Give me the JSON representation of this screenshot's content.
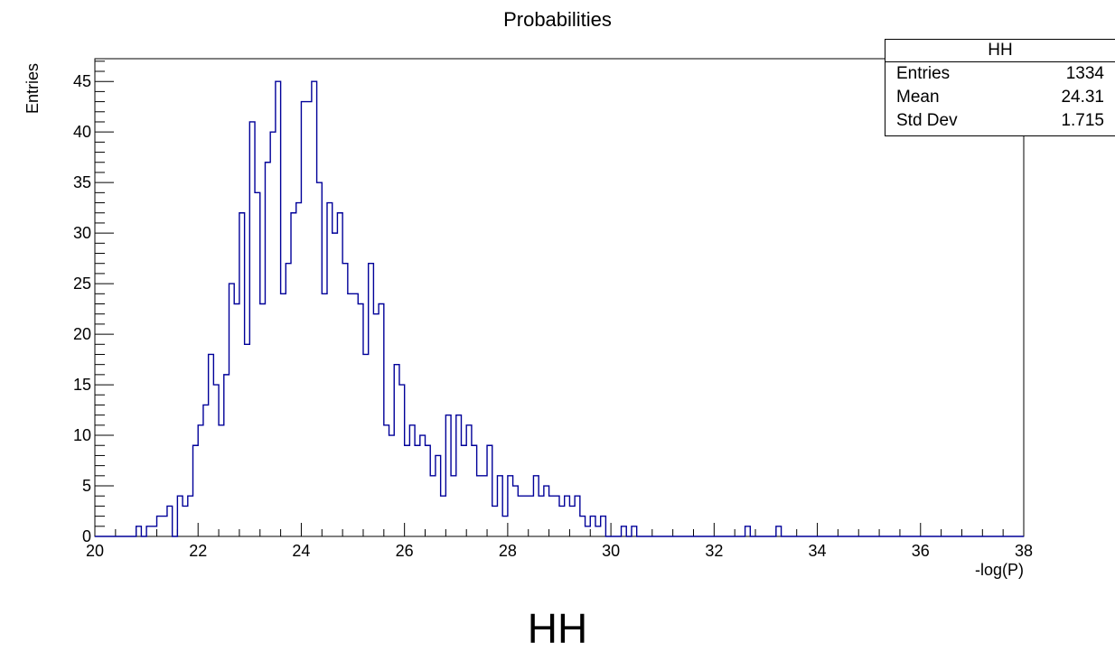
{
  "chart_data": {
    "type": "bar",
    "title": "Probabilities",
    "xlabel": "-log(P)",
    "ylabel": "Entries",
    "xlim": [
      20,
      38
    ],
    "ylim": [
      0,
      47.25
    ],
    "bin_width": 0.1,
    "x_ticks": [
      20,
      22,
      24,
      26,
      28,
      30,
      32,
      34,
      36,
      38
    ],
    "y_ticks": [
      0,
      5,
      10,
      15,
      20,
      25,
      30,
      35,
      40,
      45
    ],
    "line_color": "#000099",
    "bins": [
      {
        "x": 20.8,
        "y": 1
      },
      {
        "x": 20.9,
        "y": 0
      },
      {
        "x": 21.0,
        "y": 1
      },
      {
        "x": 21.1,
        "y": 1
      },
      {
        "x": 21.2,
        "y": 2
      },
      {
        "x": 21.3,
        "y": 2
      },
      {
        "x": 21.4,
        "y": 3
      },
      {
        "x": 21.5,
        "y": 0
      },
      {
        "x": 21.6,
        "y": 4
      },
      {
        "x": 21.7,
        "y": 3
      },
      {
        "x": 21.8,
        "y": 4
      },
      {
        "x": 21.9,
        "y": 9
      },
      {
        "x": 22.0,
        "y": 11
      },
      {
        "x": 22.1,
        "y": 13
      },
      {
        "x": 22.2,
        "y": 18
      },
      {
        "x": 22.3,
        "y": 15
      },
      {
        "x": 22.4,
        "y": 11
      },
      {
        "x": 22.5,
        "y": 16
      },
      {
        "x": 22.6,
        "y": 25
      },
      {
        "x": 22.7,
        "y": 23
      },
      {
        "x": 22.8,
        "y": 32
      },
      {
        "x": 22.9,
        "y": 19
      },
      {
        "x": 23.0,
        "y": 41
      },
      {
        "x": 23.1,
        "y": 34
      },
      {
        "x": 23.2,
        "y": 23
      },
      {
        "x": 23.3,
        "y": 37
      },
      {
        "x": 23.4,
        "y": 40
      },
      {
        "x": 23.5,
        "y": 45
      },
      {
        "x": 23.6,
        "y": 24
      },
      {
        "x": 23.7,
        "y": 27
      },
      {
        "x": 23.8,
        "y": 32
      },
      {
        "x": 23.9,
        "y": 33
      },
      {
        "x": 24.0,
        "y": 43
      },
      {
        "x": 24.1,
        "y": 43
      },
      {
        "x": 24.2,
        "y": 45
      },
      {
        "x": 24.3,
        "y": 35
      },
      {
        "x": 24.4,
        "y": 24
      },
      {
        "x": 24.5,
        "y": 33
      },
      {
        "x": 24.6,
        "y": 30
      },
      {
        "x": 24.7,
        "y": 32
      },
      {
        "x": 24.8,
        "y": 27
      },
      {
        "x": 24.9,
        "y": 24
      },
      {
        "x": 25.0,
        "y": 24
      },
      {
        "x": 25.1,
        "y": 23
      },
      {
        "x": 25.2,
        "y": 18
      },
      {
        "x": 25.3,
        "y": 27
      },
      {
        "x": 25.4,
        "y": 22
      },
      {
        "x": 25.5,
        "y": 23
      },
      {
        "x": 25.6,
        "y": 11
      },
      {
        "x": 25.7,
        "y": 10
      },
      {
        "x": 25.8,
        "y": 17
      },
      {
        "x": 25.9,
        "y": 15
      },
      {
        "x": 26.0,
        "y": 9
      },
      {
        "x": 26.1,
        "y": 11
      },
      {
        "x": 26.2,
        "y": 9
      },
      {
        "x": 26.3,
        "y": 10
      },
      {
        "x": 26.4,
        "y": 9
      },
      {
        "x": 26.5,
        "y": 6
      },
      {
        "x": 26.6,
        "y": 8
      },
      {
        "x": 26.7,
        "y": 4
      },
      {
        "x": 26.8,
        "y": 12
      },
      {
        "x": 26.9,
        "y": 6
      },
      {
        "x": 27.0,
        "y": 12
      },
      {
        "x": 27.1,
        "y": 9
      },
      {
        "x": 27.2,
        "y": 11
      },
      {
        "x": 27.3,
        "y": 9
      },
      {
        "x": 27.4,
        "y": 6
      },
      {
        "x": 27.5,
        "y": 6
      },
      {
        "x": 27.6,
        "y": 9
      },
      {
        "x": 27.7,
        "y": 3
      },
      {
        "x": 27.8,
        "y": 6
      },
      {
        "x": 27.9,
        "y": 2
      },
      {
        "x": 28.0,
        "y": 6
      },
      {
        "x": 28.1,
        "y": 5
      },
      {
        "x": 28.2,
        "y": 4
      },
      {
        "x": 28.3,
        "y": 4
      },
      {
        "x": 28.4,
        "y": 4
      },
      {
        "x": 28.5,
        "y": 6
      },
      {
        "x": 28.6,
        "y": 4
      },
      {
        "x": 28.7,
        "y": 5
      },
      {
        "x": 28.8,
        "y": 4
      },
      {
        "x": 28.9,
        "y": 4
      },
      {
        "x": 29.0,
        "y": 3
      },
      {
        "x": 29.1,
        "y": 4
      },
      {
        "x": 29.2,
        "y": 3
      },
      {
        "x": 29.3,
        "y": 4
      },
      {
        "x": 29.4,
        "y": 2
      },
      {
        "x": 29.5,
        "y": 1
      },
      {
        "x": 29.6,
        "y": 2
      },
      {
        "x": 29.7,
        "y": 1
      },
      {
        "x": 29.8,
        "y": 2
      },
      {
        "x": 29.9,
        "y": 0
      },
      {
        "x": 30.0,
        "y": 0
      },
      {
        "x": 30.1,
        "y": 0
      },
      {
        "x": 30.2,
        "y": 1
      },
      {
        "x": 30.3,
        "y": 0
      },
      {
        "x": 30.4,
        "y": 1
      },
      {
        "x": 32.6,
        "y": 1
      },
      {
        "x": 33.2,
        "y": 1
      }
    ]
  },
  "stats": {
    "title": "HH",
    "rows": [
      {
        "label": "Entries",
        "value": "1334"
      },
      {
        "label": "Mean",
        "value": "24.31"
      },
      {
        "label": "Std Dev",
        "value": "1.715"
      }
    ]
  },
  "footer": {
    "label": "HH"
  }
}
